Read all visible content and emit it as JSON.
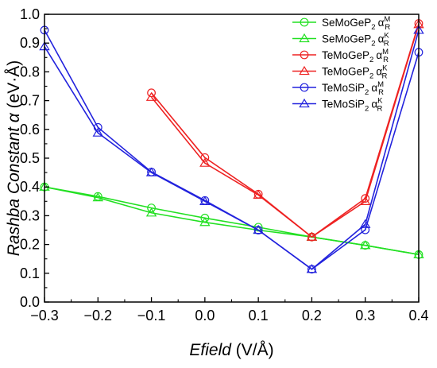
{
  "chart_data": {
    "type": "line",
    "xlabel": {
      "italic": "Efield",
      "unit": " (V/Å)"
    },
    "ylabel": {
      "italic": "Rashba Constant α",
      "unit": " (eV·Å)"
    },
    "xlim": [
      -0.3,
      0.4
    ],
    "ylim": [
      0.0,
      1.0
    ],
    "xticks": [
      -0.3,
      -0.2,
      -0.1,
      0.0,
      0.1,
      0.2,
      0.3,
      0.4
    ],
    "yticks": [
      0.0,
      0.1,
      0.2,
      0.3,
      0.4,
      0.5,
      0.6,
      0.7,
      0.8,
      0.9,
      1.0
    ],
    "xtick_labels": [
      "−0.3",
      "−0.2",
      "−0.1",
      "0.0",
      "0.1",
      "0.2",
      "0.3",
      "0.4"
    ],
    "ytick_labels": [
      "0.0",
      "0.1",
      "0.2",
      "0.3",
      "0.4",
      "0.5",
      "0.6",
      "0.7",
      "0.8",
      "0.9",
      "1.0"
    ],
    "grid": false,
    "legend_position": "top-right",
    "series": [
      {
        "name": "SeMoGeP2 αR^M",
        "formula": "SeMoGeP",
        "sub": "2",
        "sup": "M",
        "color": "#22e022",
        "marker": "circle",
        "x": [
          -0.3,
          -0.2,
          -0.1,
          0.0,
          0.1,
          0.2,
          0.3,
          0.4
        ],
        "y": [
          0.4,
          0.367,
          0.327,
          0.292,
          0.26,
          0.226,
          0.197,
          0.165
        ]
      },
      {
        "name": "SeMoGeP2 αR^K",
        "formula": "SeMoGeP",
        "sub": "2",
        "sup": "K",
        "color": "#22e022",
        "marker": "triangle",
        "x": [
          -0.3,
          -0.2,
          -0.1,
          0.0,
          0.1,
          0.2,
          0.3,
          0.4
        ],
        "y": [
          0.4,
          0.363,
          0.31,
          0.277,
          0.25,
          0.226,
          0.197,
          0.165
        ]
      },
      {
        "name": "TeMoGeP2 αR^M",
        "formula": "TeMoGeP",
        "sub": "2",
        "sup": "M",
        "color": "#ee2222",
        "marker": "circle",
        "x": [
          -0.1,
          0.0,
          0.1,
          0.2,
          0.3,
          0.4
        ],
        "y": [
          0.727,
          0.502,
          0.375,
          0.226,
          0.36,
          0.968
        ]
      },
      {
        "name": "TeMoGeP2 αR^K",
        "formula": "TeMoGeP",
        "sub": "2",
        "sup": "K",
        "color": "#ee2222",
        "marker": "triangle",
        "x": [
          -0.1,
          0.0,
          0.1,
          0.2,
          0.3,
          0.4
        ],
        "y": [
          0.712,
          0.483,
          0.372,
          0.226,
          0.35,
          0.965
        ]
      },
      {
        "name": "TeMoSiP2 αR^M",
        "formula": "TeMoSiP",
        "sub": "2",
        "sup": "M",
        "color": "#2222dd",
        "marker": "circle",
        "x": [
          -0.3,
          -0.2,
          -0.1,
          0.0,
          0.1,
          0.2,
          0.3,
          0.4
        ],
        "y": [
          0.945,
          0.607,
          0.452,
          0.353,
          0.25,
          0.114,
          0.251,
          0.868
        ]
      },
      {
        "name": "TeMoSiP2 αR^K",
        "formula": "TeMoSiP",
        "sub": "2",
        "sup": "K",
        "color": "#2222dd",
        "marker": "triangle",
        "x": [
          -0.3,
          -0.2,
          -0.1,
          0.0,
          0.1,
          0.2,
          0.3,
          0.4
        ],
        "y": [
          0.888,
          0.588,
          0.45,
          0.35,
          0.25,
          0.114,
          0.27,
          0.945
        ]
      }
    ]
  }
}
